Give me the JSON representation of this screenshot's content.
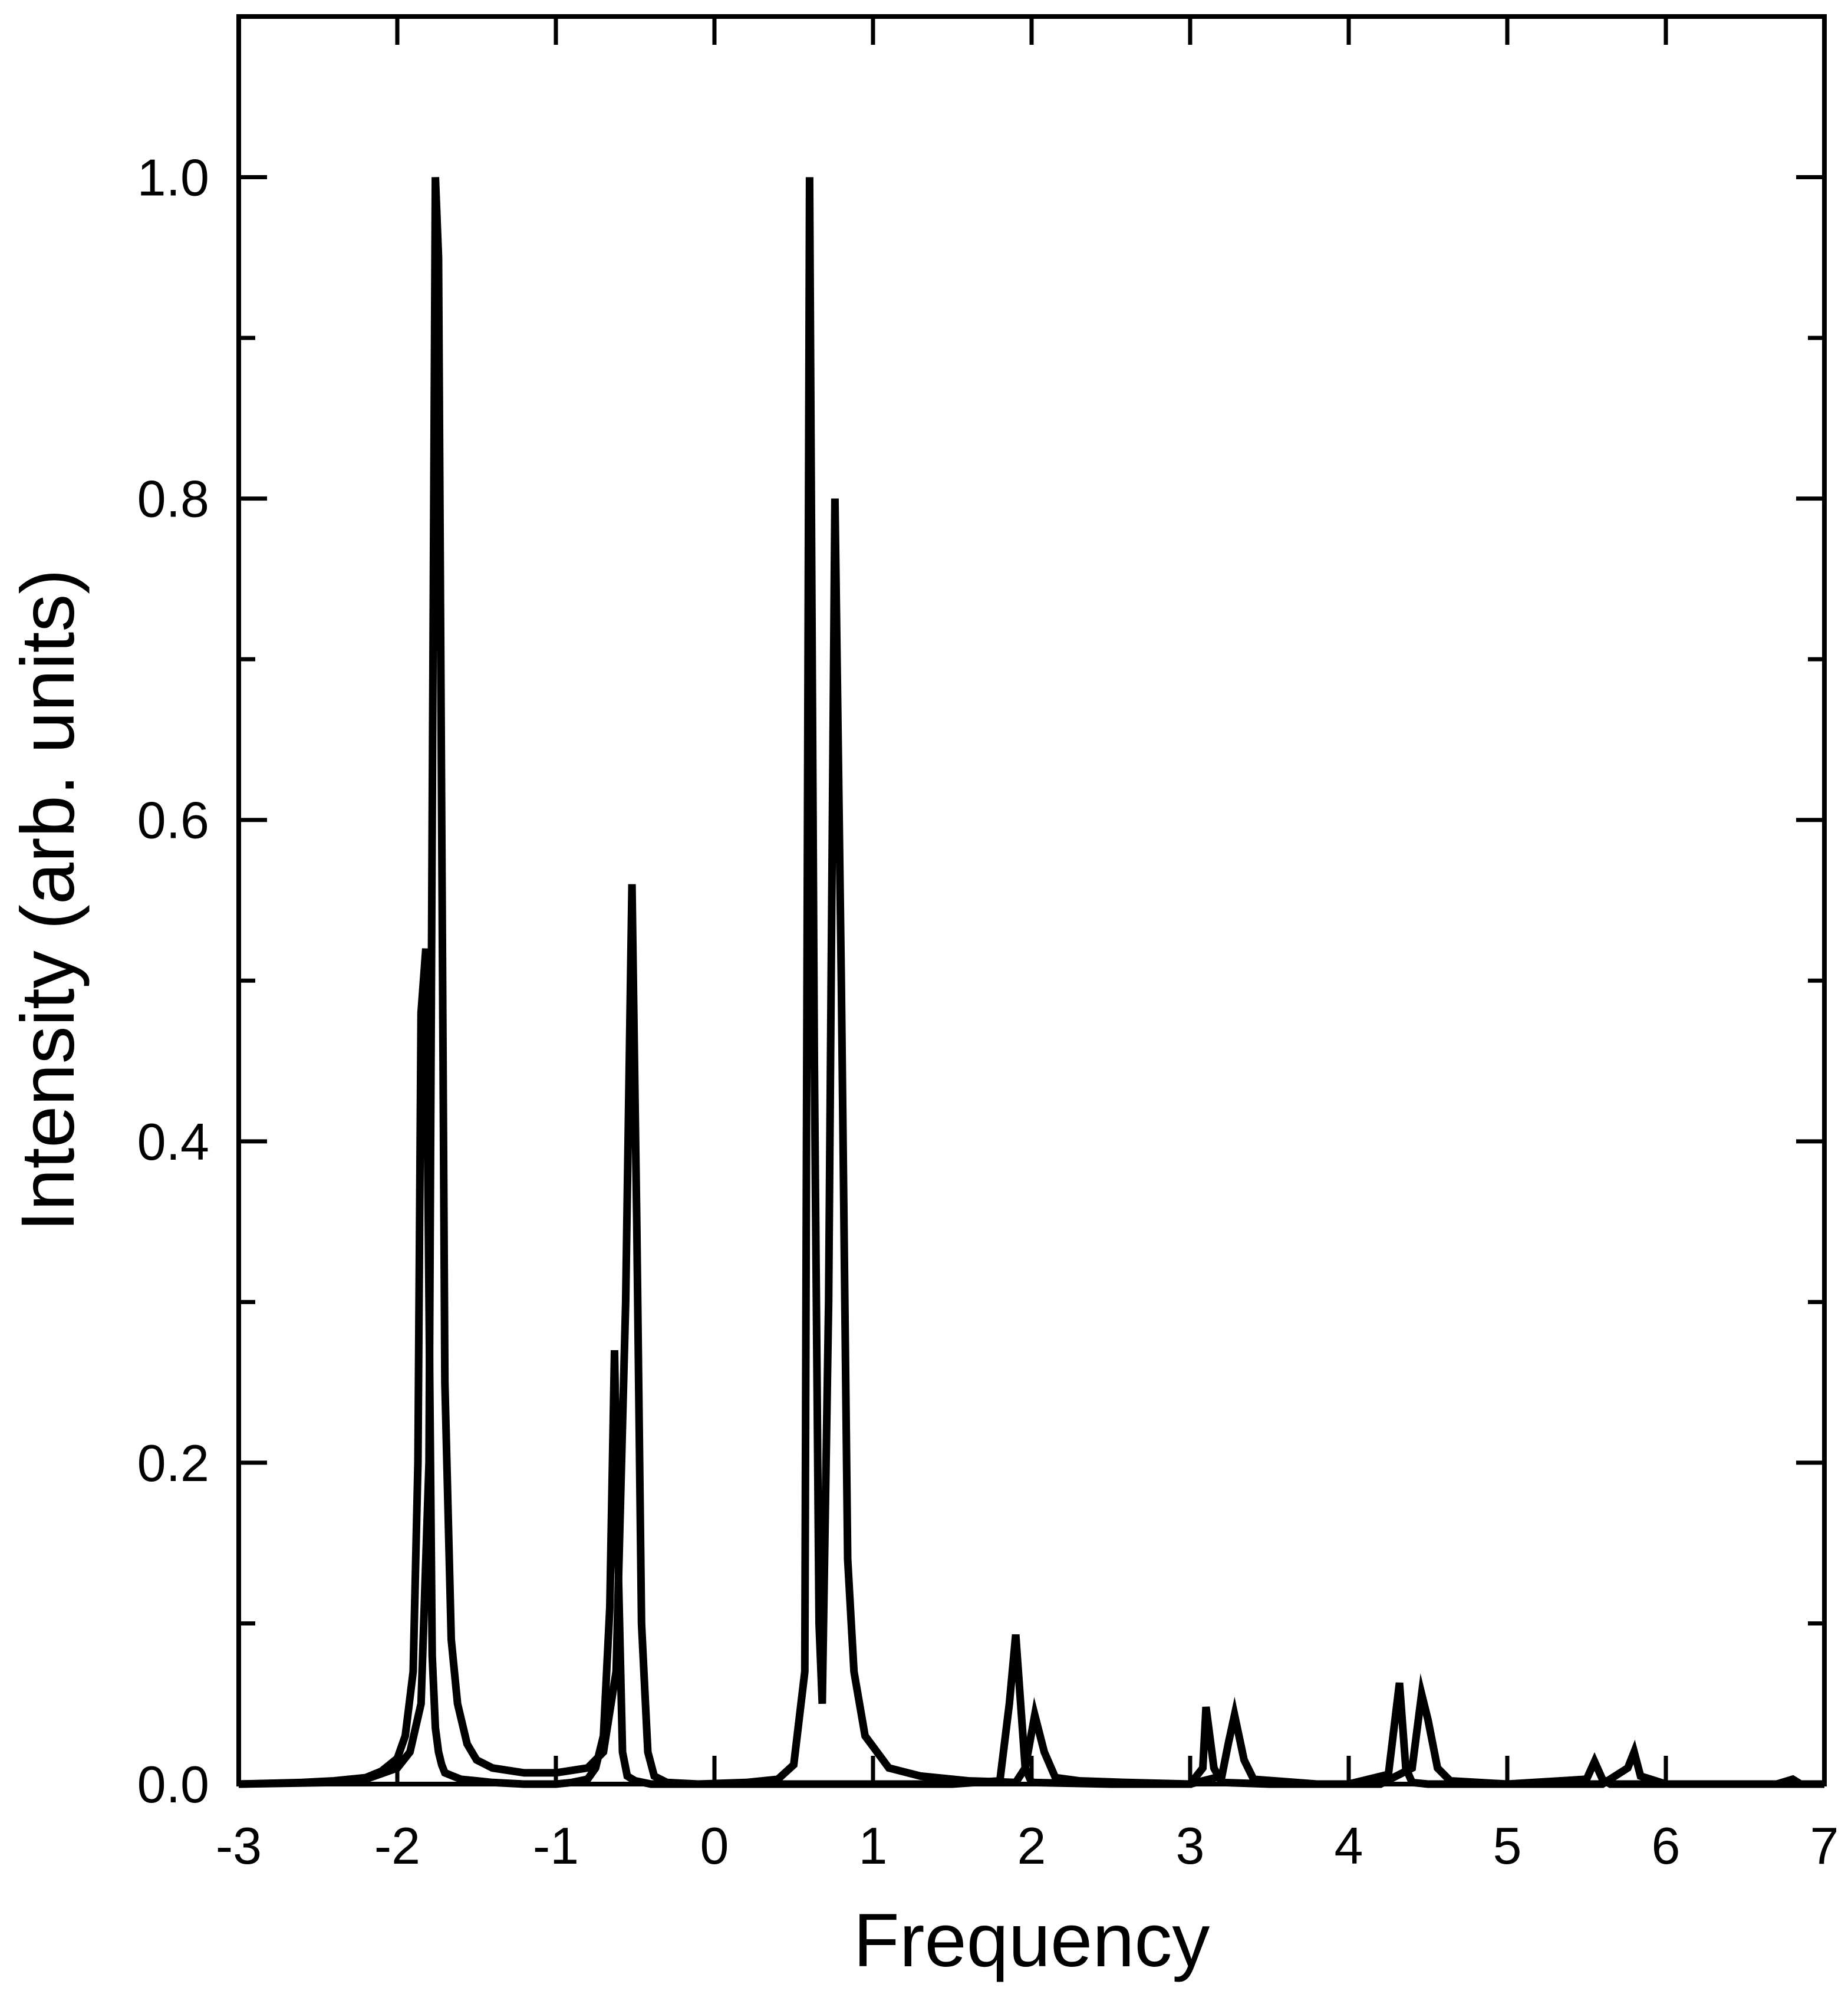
{
  "chart_data": {
    "type": "line",
    "xlabel": "Frequency",
    "ylabel": "Intensity (arb. units)",
    "xlim": [
      -3,
      7
    ],
    "ylim": [
      0,
      1.1
    ],
    "x_ticks": [
      -3,
      -2,
      -1,
      0,
      1,
      2,
      3,
      4,
      5,
      6,
      7
    ],
    "x_tick_labels": [
      "-3",
      "-2",
      "-1",
      "0",
      "1",
      "2",
      "3",
      "4",
      "5",
      "6",
      "7"
    ],
    "y_ticks": [
      0.0,
      0.2,
      0.4,
      0.6,
      0.8,
      1.0
    ],
    "y_tick_labels": [
      "0.0",
      "0.2",
      "0.4",
      "0.6",
      "0.8",
      "1.0"
    ],
    "y_minor_ticks": [
      0.1,
      0.3,
      0.5,
      0.7,
      0.9
    ],
    "grid": false,
    "line_color": "#000000",
    "series": [
      {
        "x": [
          -3.0,
          -2.6,
          -2.4,
          -2.2,
          -2.1,
          -2.0,
          -1.95,
          -1.9,
          -1.87,
          -1.85,
          -1.82,
          -1.8,
          -1.78,
          -1.76,
          -1.74,
          -1.72,
          -1.7,
          -1.6,
          -1.5,
          -1.4,
          -1.2,
          -1.0,
          -0.9,
          -0.8,
          -0.75,
          -0.7,
          -0.66,
          -0.63,
          -0.61,
          -0.58,
          -0.55,
          -0.5,
          -0.45,
          -0.4,
          -0.3,
          -0.2,
          0.0,
          0.5,
          1.0,
          1.5,
          1.8,
          1.86,
          1.9,
          1.96,
          2.0,
          2.5,
          3.0,
          3.08,
          3.1,
          3.15,
          3.2,
          3.5,
          4.0,
          4.25,
          4.32,
          4.36,
          4.4,
          4.5,
          5.0,
          5.5,
          5.55,
          5.6,
          5.65,
          6.0,
          6.7,
          6.8,
          6.85,
          6.9,
          7.0
        ],
        "y": [
          0.0,
          0.001,
          0.002,
          0.004,
          0.008,
          0.016,
          0.03,
          0.07,
          0.2,
          0.48,
          0.52,
          0.3,
          0.08,
          0.035,
          0.02,
          0.012,
          0.007,
          0.003,
          0.002,
          0.001,
          0.0,
          0.0,
          0.001,
          0.003,
          0.01,
          0.03,
          0.11,
          0.27,
          0.15,
          0.02,
          0.005,
          0.002,
          0.001,
          0.0,
          0.0,
          0.0,
          0.0,
          0.0,
          0.0,
          0.0,
          0.002,
          0.05,
          0.093,
          0.01,
          0.001,
          0.0,
          0.0,
          0.01,
          0.048,
          0.01,
          0.001,
          0.0,
          0.0,
          0.006,
          0.063,
          0.01,
          0.001,
          0.0,
          0.0,
          0.003,
          0.014,
          0.003,
          0.0,
          0.0,
          0.0,
          0.003,
          0.0,
          0.0,
          0.0
        ]
      },
      {
        "x": [
          -3.0,
          -2.4,
          -2.2,
          -2.0,
          -1.92,
          -1.85,
          -1.8,
          -1.76,
          -1.74,
          -1.72,
          -1.7,
          -1.66,
          -1.62,
          -1.56,
          -1.5,
          -1.4,
          -1.2,
          -1.0,
          -0.8,
          -0.7,
          -0.62,
          -0.56,
          -0.52,
          -0.49,
          -0.46,
          -0.42,
          -0.38,
          -0.3,
          -0.1,
          0.2,
          0.4,
          0.5,
          0.57,
          0.6,
          0.63,
          0.66,
          0.68,
          0.72,
          0.76,
          0.8,
          0.84,
          0.88,
          0.95,
          1.1,
          1.3,
          1.6,
          1.9,
          1.96,
          2.02,
          2.08,
          2.15,
          2.3,
          2.6,
          3.0,
          3.2,
          3.24,
          3.28,
          3.34,
          3.4,
          3.8,
          4.2,
          4.4,
          4.46,
          4.5,
          4.56,
          4.64,
          5.0,
          5.6,
          5.76,
          5.8,
          5.84,
          6.0,
          6.5,
          7.0
        ],
        "y": [
          0.0,
          0.001,
          0.003,
          0.01,
          0.02,
          0.05,
          0.2,
          1.0,
          0.95,
          0.6,
          0.25,
          0.09,
          0.05,
          0.025,
          0.015,
          0.01,
          0.007,
          0.007,
          0.01,
          0.02,
          0.07,
          0.3,
          0.56,
          0.35,
          0.1,
          0.02,
          0.005,
          0.001,
          0.0,
          0.001,
          0.003,
          0.012,
          0.07,
          1.0,
          0.45,
          0.1,
          0.05,
          0.3,
          0.8,
          0.5,
          0.14,
          0.07,
          0.03,
          0.01,
          0.005,
          0.002,
          0.001,
          0.01,
          0.043,
          0.02,
          0.004,
          0.002,
          0.001,
          0.0,
          0.005,
          0.025,
          0.043,
          0.015,
          0.003,
          0.0,
          0.0,
          0.01,
          0.056,
          0.04,
          0.01,
          0.002,
          0.0,
          0.0,
          0.01,
          0.02,
          0.005,
          0.0,
          0.0,
          0.0
        ]
      }
    ]
  }
}
